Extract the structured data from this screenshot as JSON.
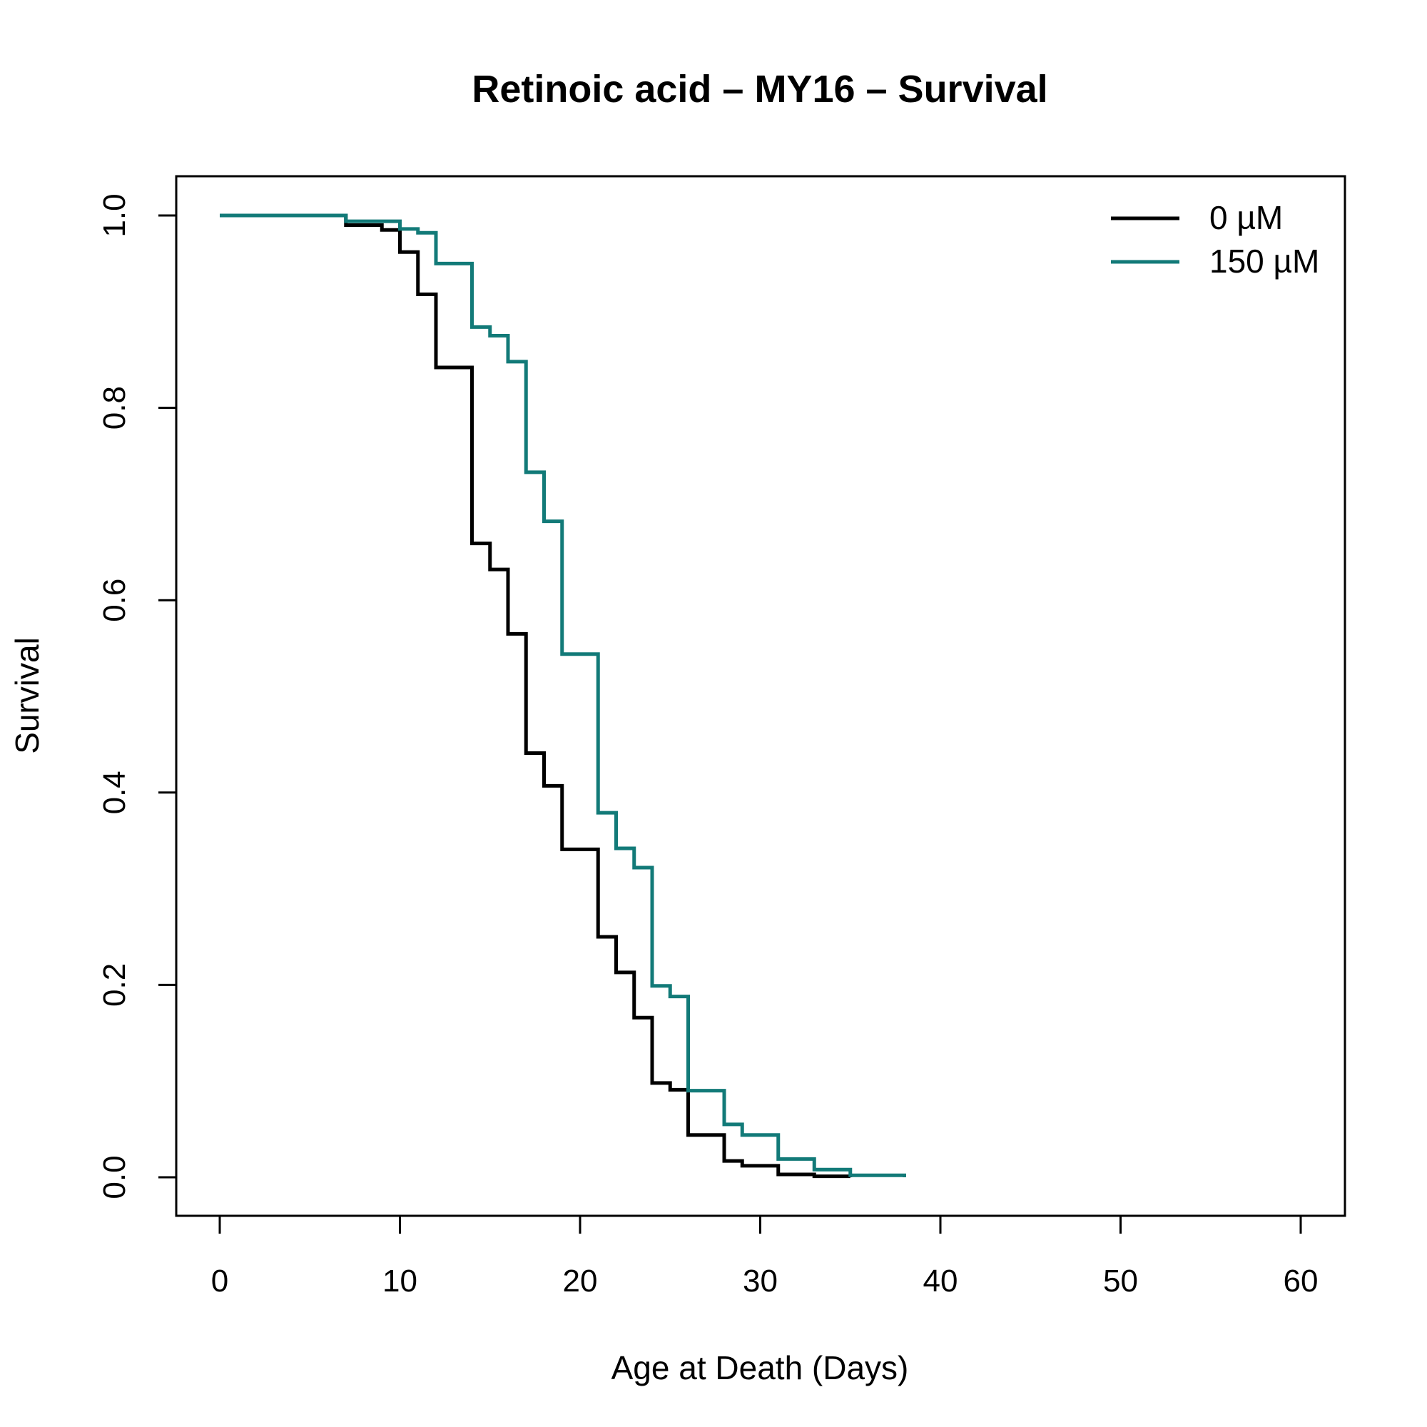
{
  "chart_data": {
    "type": "line",
    "step": true,
    "title": "Retinoic acid – MY16 – Survival",
    "xlabel": "Age at Death (Days)",
    "ylabel": "Survival",
    "xlim": [
      0,
      60
    ],
    "ylim": [
      0,
      1
    ],
    "x_ticks": [
      0,
      10,
      20,
      30,
      40,
      50,
      60
    ],
    "y_ticks": [
      0.0,
      0.2,
      0.4,
      0.6,
      0.8,
      1.0
    ],
    "x_tick_labels": [
      "0",
      "10",
      "20",
      "30",
      "40",
      "50",
      "60"
    ],
    "y_tick_labels": [
      "0.0",
      "0.2",
      "0.4",
      "0.6",
      "0.8",
      "1.0"
    ],
    "grid": false,
    "legend_position": "top-right",
    "series": [
      {
        "name": "0 µM",
        "color": "#000000",
        "x": [
          0,
          7,
          9,
          10,
          11,
          12,
          14,
          15,
          16,
          17,
          18,
          19,
          21,
          22,
          23,
          24,
          25,
          26,
          28,
          29,
          31,
          33,
          35
        ],
        "y": [
          1.0,
          0.99,
          0.985,
          0.962,
          0.918,
          0.842,
          0.659,
          0.632,
          0.565,
          0.441,
          0.407,
          0.341,
          0.25,
          0.213,
          0.166,
          0.098,
          0.091,
          0.044,
          0.017,
          0.012,
          0.003,
          0.001,
          0.0
        ]
      },
      {
        "name": "150 µM",
        "color": "#127A78",
        "x": [
          0,
          7,
          10,
          11,
          12,
          14,
          15,
          16,
          17,
          18,
          19,
          21,
          22,
          23,
          24,
          25,
          26,
          28,
          29,
          31,
          33,
          35,
          38
        ],
        "y": [
          1.0,
          0.994,
          0.986,
          0.982,
          0.95,
          0.884,
          0.875,
          0.848,
          0.733,
          0.682,
          0.544,
          0.379,
          0.342,
          0.322,
          0.199,
          0.188,
          0.09,
          0.055,
          0.044,
          0.019,
          0.008,
          0.002,
          0.0
        ]
      }
    ]
  }
}
